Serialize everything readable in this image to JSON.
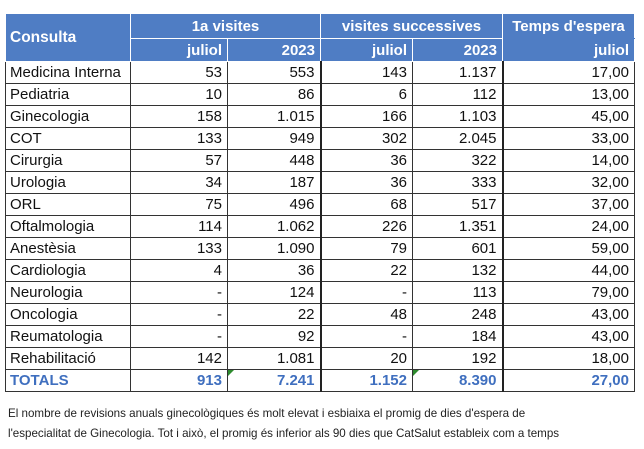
{
  "header": {
    "consulta": "Consulta",
    "group1": "1a visites",
    "group2": "visites successives",
    "group3": "Temps d'espera",
    "sub_juliol": "juliol",
    "sub_2023": "2023"
  },
  "rows": [
    {
      "name": "Medicina Interna",
      "v1": "53",
      "v2": "553",
      "v3": "143",
      "v4": "1.137",
      "v5": "17,00"
    },
    {
      "name": "Pediatria",
      "v1": "10",
      "v2": "86",
      "v3": "6",
      "v4": "112",
      "v5": "13,00"
    },
    {
      "name": "Ginecologia",
      "v1": "158",
      "v2": "1.015",
      "v3": "166",
      "v4": "1.103",
      "v5": "45,00"
    },
    {
      "name": "COT",
      "v1": "133",
      "v2": "949",
      "v3": "302",
      "v4": "2.045",
      "v5": "33,00"
    },
    {
      "name": "Cirurgia",
      "v1": "57",
      "v2": "448",
      "v3": "36",
      "v4": "322",
      "v5": "14,00"
    },
    {
      "name": "Urologia",
      "v1": "34",
      "v2": "187",
      "v3": "36",
      "v4": "333",
      "v5": "32,00"
    },
    {
      "name": "ORL",
      "v1": "75",
      "v2": "496",
      "v3": "68",
      "v4": "517",
      "v5": "37,00"
    },
    {
      "name": "Oftalmologia",
      "v1": "114",
      "v2": "1.062",
      "v3": "226",
      "v4": "1.351",
      "v5": "24,00"
    },
    {
      "name": "Anestèsia",
      "v1": "133",
      "v2": "1.090",
      "v3": "79",
      "v4": "601",
      "v5": "59,00"
    },
    {
      "name": "Cardiologia",
      "v1": "4",
      "v2": "36",
      "v3": "22",
      "v4": "132",
      "v5": "44,00"
    },
    {
      "name": "Neurologia",
      "v1": "-",
      "v2": "124",
      "v3": "-",
      "v4": "113",
      "v5": "79,00"
    },
    {
      "name": "Oncologia",
      "v1": "-",
      "v2": "22",
      "v3": "48",
      "v4": "248",
      "v5": "43,00"
    },
    {
      "name": "Reumatologia",
      "v1": "-",
      "v2": "92",
      "v3": "-",
      "v4": "184",
      "v5": "43,00"
    },
    {
      "name": "Rehabilitació",
      "v1": "142",
      "v2": "1.081",
      "v3": "20",
      "v4": "192",
      "v5": "18,00"
    }
  ],
  "totals": {
    "name": "TOTALS",
    "v1": "913",
    "v2": "7.241",
    "v3": "1.152",
    "v4": "8.390",
    "v5": "27,00"
  },
  "note": {
    "line1": "El nombre de revisions anuals ginecològiques és molt elevat i esbiaixa el promig de dies d'espera de",
    "line2": "l'especialitat de Ginecologia. Tot i això, el promig és inferior als 90 dies que CatSalut estableix com a temps"
  }
}
